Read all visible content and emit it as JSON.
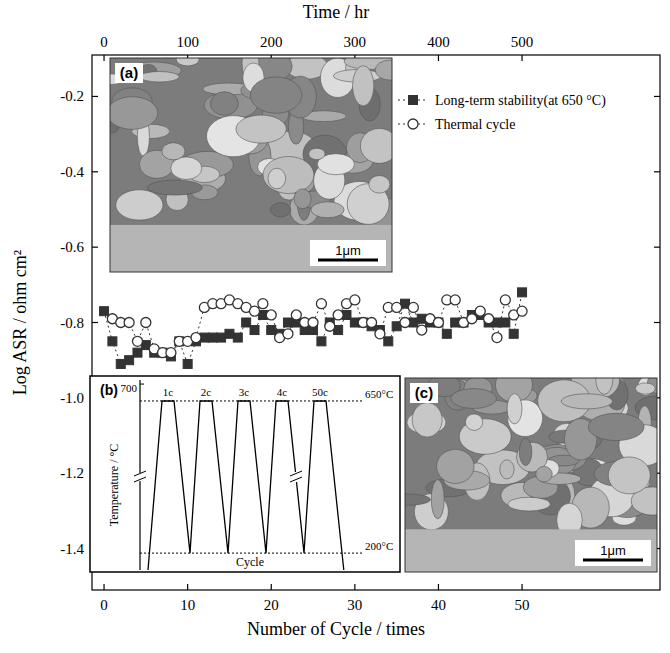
{
  "chart_data": [
    {
      "type": "scatter",
      "x_label": "Number of Cycle / times",
      "x2_label": "Time / hr",
      "y_label": "Log ASR / ohm cm²",
      "xlim": [
        -1.44,
        66.5
      ],
      "xticks": [
        0,
        10,
        20,
        30,
        40,
        50
      ],
      "x2lim": [
        -14.4,
        665
      ],
      "x2ticks": [
        0,
        100,
        200,
        300,
        400,
        500
      ],
      "ylim": [
        -1.51,
        -0.09
      ],
      "yticks": [
        -1.4,
        -1.2,
        {
          "value": -1.0,
          "label": "-1.0"
        },
        -0.8,
        -0.6,
        -0.4,
        -0.2
      ],
      "legend": "upper right",
      "grid": false,
      "series": [
        {
          "name": "Long-term stability(at 650 °C)",
          "color": "#333333",
          "marker": "square",
          "line_style": "dotted",
          "x": [
            0,
            1,
            2,
            3,
            4,
            5,
            6,
            7,
            8,
            9,
            10,
            11,
            12,
            13,
            14,
            15,
            16,
            17,
            18,
            19,
            20,
            21,
            22,
            23,
            24,
            25,
            26,
            27,
            28,
            29,
            30,
            31,
            32,
            33,
            34,
            35,
            36,
            37,
            38,
            39,
            40,
            41,
            42,
            43,
            44,
            45,
            46,
            47,
            48,
            49,
            50
          ],
          "values": [
            -0.77,
            -0.85,
            -0.91,
            -0.9,
            -0.88,
            -0.86,
            -0.88,
            -0.88,
            -0.89,
            -0.85,
            -0.91,
            -0.85,
            -0.84,
            -0.84,
            -0.84,
            -0.83,
            -0.84,
            -0.8,
            -0.82,
            -0.78,
            -0.82,
            -0.83,
            -0.8,
            -0.8,
            -0.82,
            -0.82,
            -0.85,
            -0.8,
            -0.82,
            -0.78,
            -0.8,
            -0.8,
            -0.81,
            -0.82,
            -0.85,
            -0.81,
            -0.75,
            -0.8,
            -0.79,
            -0.8,
            -0.8,
            -0.83,
            -0.8,
            -0.8,
            -0.78,
            -0.78,
            -0.8,
            -0.8,
            -0.8,
            -0.83,
            -0.72
          ]
        },
        {
          "name": "Thermal cycle",
          "color": "#333333",
          "marker": "open-circle",
          "line_style": "dotted",
          "x": [
            1,
            2,
            3,
            4,
            5,
            6,
            7,
            8,
            9,
            10,
            11,
            12,
            13,
            14,
            15,
            16,
            17,
            18,
            19,
            20,
            21,
            22,
            23,
            24,
            25,
            26,
            27,
            28,
            29,
            30,
            31,
            32,
            33,
            34,
            35,
            36,
            37,
            38,
            39,
            40,
            41,
            42,
            43,
            44,
            45,
            46,
            47,
            48,
            49,
            50
          ],
          "values": [
            -0.79,
            -0.8,
            -0.8,
            -0.85,
            -0.8,
            -0.87,
            -0.88,
            -0.88,
            -0.85,
            -0.85,
            -0.84,
            -0.76,
            -0.75,
            -0.75,
            -0.74,
            -0.75,
            -0.76,
            -0.77,
            -0.75,
            -0.78,
            -0.84,
            -0.83,
            -0.78,
            -0.8,
            -0.8,
            -0.75,
            -0.81,
            -0.78,
            -0.75,
            -0.74,
            -0.8,
            -0.8,
            -0.83,
            -0.76,
            -0.76,
            -0.8,
            -0.76,
            -0.82,
            -0.79,
            -0.8,
            -0.74,
            -0.74,
            -0.8,
            -0.79,
            -0.77,
            -0.79,
            -0.84,
            -0.74,
            -0.78,
            -0.77
          ]
        }
      ]
    },
    {
      "type": "line",
      "title": "(b)",
      "y_label": "Temperature / °C",
      "x_label": "Cycle",
      "categories": [
        "1c",
        "2c",
        "3c",
        "4c",
        "50c"
      ],
      "values": [
        650,
        650,
        650,
        650,
        650
      ],
      "min_values": [
        200,
        200,
        200,
        200,
        200
      ],
      "ylim": [
        150,
        712
      ],
      "yticks": [
        700
      ],
      "annotations": [
        {
          "text": "650°C",
          "value": 650
        },
        {
          "text": "200°C",
          "value": 200
        }
      ]
    }
  ],
  "images": [
    {
      "label": "(a)",
      "scale_bar": "1μm"
    },
    {
      "label": "(c)",
      "scale_bar": "1μm"
    }
  ]
}
